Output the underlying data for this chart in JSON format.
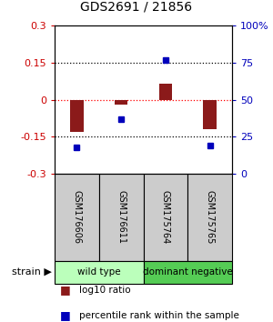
{
  "title": "GDS2691 / 21856",
  "samples": [
    "GSM176606",
    "GSM176611",
    "GSM175764",
    "GSM175765"
  ],
  "log10_ratios": [
    -0.13,
    -0.02,
    0.065,
    -0.12
  ],
  "percentile_ranks": [
    18,
    37,
    77,
    19
  ],
  "groups": [
    {
      "label": "wild type",
      "color": "#bbffbb",
      "span": [
        0,
        2
      ]
    },
    {
      "label": "dominant negative",
      "color": "#55cc55",
      "span": [
        2,
        4
      ]
    }
  ],
  "group_label": "strain",
  "bar_color": "#8b1a1a",
  "dot_color": "#0000bb",
  "left_axis_color": "#cc0000",
  "right_axis_color": "#0000bb",
  "ylim_left": [
    -0.3,
    0.3
  ],
  "ylim_right": [
    0,
    100
  ],
  "left_ticks": [
    -0.3,
    -0.15,
    0,
    0.15,
    0.3
  ],
  "right_ticks": [
    0,
    25,
    50,
    75,
    100
  ],
  "right_tick_labels": [
    "0",
    "25",
    "50",
    "75",
    "100%"
  ],
  "sample_box_color": "#cccccc",
  "bg_color": "#ffffff",
  "bar_width": 0.3,
  "dot_size": 5
}
